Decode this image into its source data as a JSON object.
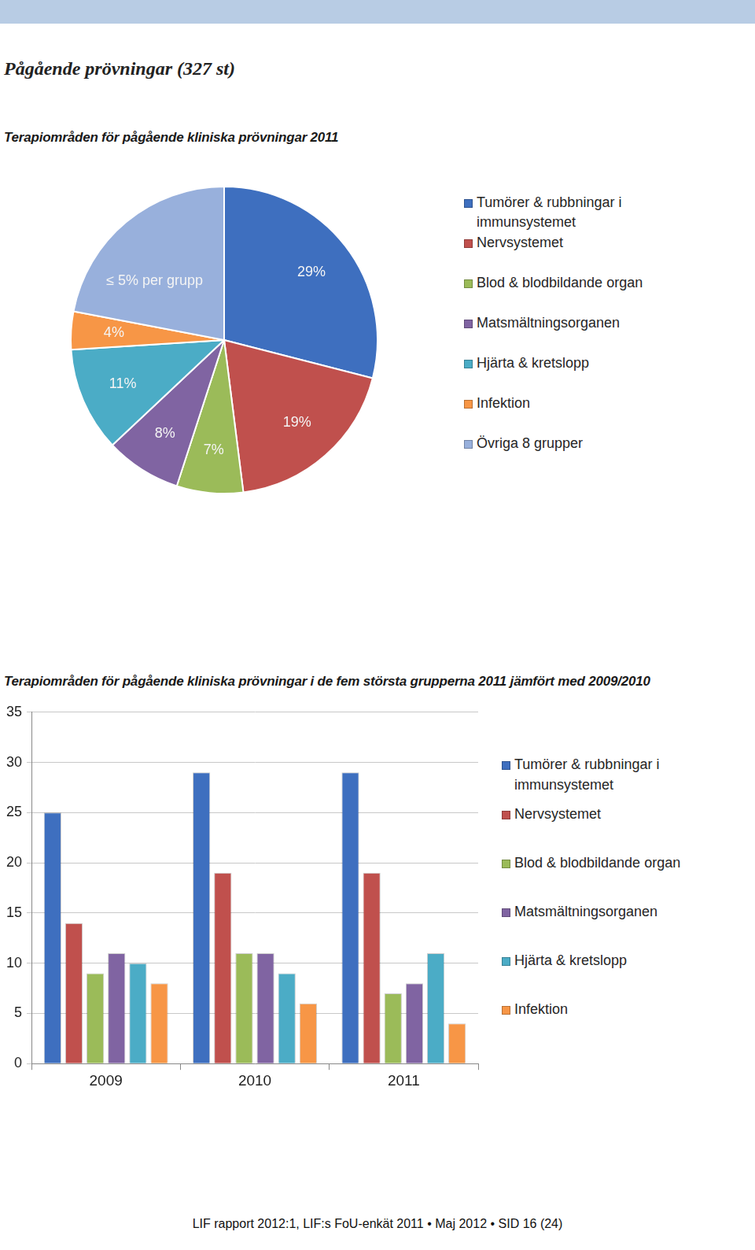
{
  "page": {
    "title": "Pågående prövningar (327 st)",
    "footer": "LIF rapport 2012:1, LIF:s FoU-enkät 2011 • Maj 2012 • SID 16 (24)"
  },
  "chart_data": [
    {
      "type": "pie",
      "title": "Terapiområden för pågående kliniska prövningar 2011",
      "categories": [
        "Tumörer & rubbningar i immunsystemet",
        "Nervsystemet",
        "Blod & blodbildande organ",
        "Matsmältningsorganen",
        "Hjärta & kretslopp",
        "Infektion",
        "Övriga 8 grupper"
      ],
      "values": [
        29,
        19,
        7,
        8,
        11,
        4,
        22
      ],
      "value_labels": [
        "29%",
        "19%",
        "7%",
        "8%",
        "11%",
        "4%",
        null
      ],
      "annotations": [
        {
          "text": "≤ 5% per grupp",
          "category": "Övriga 8 grupper"
        }
      ],
      "colors": [
        "#3e6fbf",
        "#c0504d",
        "#9bbb59",
        "#8064a2",
        "#4bacc6",
        "#f79646",
        "#98b0dc"
      ],
      "data_labels": true,
      "legend": "right"
    },
    {
      "type": "bar",
      "title": "Terapiområden för pågående kliniska prövningar i de fem största grupperna 2011 jämfört med 2009/2010",
      "categories": [
        "2009",
        "2010",
        "2011"
      ],
      "series": [
        {
          "name": "Tumörer & rubbningar i immunsystemet",
          "color": "#3e6fbf",
          "values": [
            25,
            29,
            29
          ]
        },
        {
          "name": "Nervsystemet",
          "color": "#c0504d",
          "values": [
            14,
            19,
            19
          ]
        },
        {
          "name": "Blod & blodbildande organ",
          "color": "#9bbb59",
          "values": [
            9,
            11,
            7
          ]
        },
        {
          "name": "Matsmältningsorganen",
          "color": "#8064a2",
          "values": [
            11,
            11,
            8
          ]
        },
        {
          "name": "Hjärta & kretslopp",
          "color": "#4bacc6",
          "values": [
            10,
            9,
            11
          ]
        },
        {
          "name": "Infektion",
          "color": "#f79646",
          "values": [
            8,
            6,
            4
          ]
        }
      ],
      "ylim": [
        0,
        35
      ],
      "yticks": [
        0,
        5,
        10,
        15,
        20,
        25,
        30,
        35
      ],
      "grid": true,
      "legend": "right"
    }
  ]
}
